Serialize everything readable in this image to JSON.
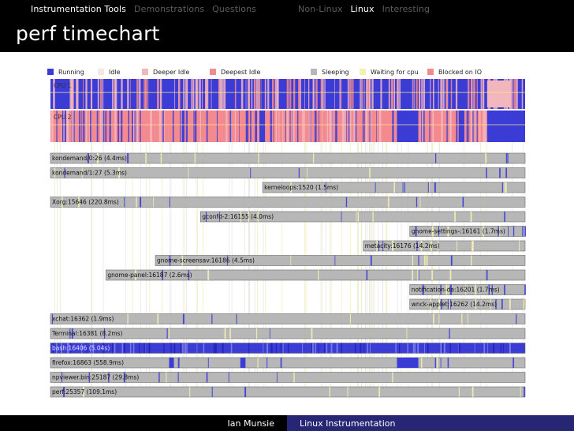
{
  "nav": {
    "left": [
      {
        "label": "Instrumentation Tools",
        "active": true
      },
      {
        "label": "Demonstrations",
        "active": false
      },
      {
        "label": "Questions",
        "active": false
      }
    ],
    "right": [
      {
        "label": "Non-Linux",
        "active": false
      },
      {
        "label": "Linux",
        "active": true
      },
      {
        "label": "Interesting",
        "active": false
      }
    ]
  },
  "slide": {
    "title": "perf timechart"
  },
  "footer": {
    "author": "Ian Munsie",
    "talk": "Linux Instrumentation"
  },
  "colors": {
    "running": "#3b3bd6",
    "idle": "#f6e6e6",
    "deeper_idle": "#f4b6bd",
    "deepest_idle": "#f28a8f",
    "sleeping": "#b7b7b7",
    "waiting_for_cpu": "#f3f0b0",
    "blocked_on_io": "#f28a8f"
  },
  "legend": [
    {
      "label": "Running",
      "color_key": "running"
    },
    {
      "label": "Idle",
      "color_key": "idle"
    },
    {
      "label": "Deeper Idle",
      "color_key": "deeper_idle"
    },
    {
      "label": "Deepest Idle",
      "color_key": "deepest_idle"
    },
    {
      "label": "Sleeping",
      "color_key": "sleeping"
    },
    {
      "label": "Waiting for cpu",
      "color_key": "waiting_for_cpu"
    },
    {
      "label": "Blocked on IO",
      "color_key": "blocked_on_io"
    }
  ],
  "cpus": [
    {
      "label": "CPU 1",
      "dominant": "running"
    },
    {
      "label": "CPU 2",
      "dominant": "deepest_idle"
    }
  ],
  "processes": [
    {
      "label": "kondemand/0:26 (4.4ms)",
      "start": 0.0,
      "end": 1.0,
      "type": "sleeping"
    },
    {
      "label": "kondemand/1:27 (5.3ms)",
      "start": 0.0,
      "end": 1.0,
      "type": "sleeping"
    },
    {
      "label": "kerneloops:1520 (1.5ms)",
      "start": 0.447,
      "end": 1.0,
      "type": "sleeping"
    },
    {
      "label": "Xorg:15646 (220.8ms)",
      "start": 0.0,
      "end": 1.0,
      "type": "sleeping"
    },
    {
      "label": "gconfd-2:16155 (4.0ms)",
      "start": 0.316,
      "end": 1.0,
      "type": "sleeping"
    },
    {
      "label": "gnome-settings-:16161 (1.7ms)",
      "start": 0.757,
      "end": 1.0,
      "type": "sleeping"
    },
    {
      "label": "metacity:16176 (14.2ms)",
      "start": 0.659,
      "end": 1.0,
      "type": "sleeping"
    },
    {
      "label": "gnome-screensav:16186 (4.5ms)",
      "start": 0.221,
      "end": 1.0,
      "type": "sleeping"
    },
    {
      "label": "gnome-panel:16187 (2.6ms)",
      "start": 0.117,
      "end": 1.0,
      "type": "sleeping"
    },
    {
      "label": "notification-da:16201 (1.7ms)",
      "start": 0.757,
      "end": 1.0,
      "type": "sleeping"
    },
    {
      "label": "wnck-applet:16262 (14.2ms)",
      "start": 0.757,
      "end": 1.0,
      "type": "sleeping"
    },
    {
      "label": "xchat:16362 (1.9ms)",
      "start": 0.0,
      "end": 1.0,
      "type": "sleeping"
    },
    {
      "label": "Terminal:16381 (8.2ms)",
      "start": 0.0,
      "end": 1.0,
      "type": "sleeping"
    },
    {
      "label": "bash:16406 (5.04s)",
      "start": 0.0,
      "end": 1.0,
      "type": "running"
    },
    {
      "label": "firefox:16863 (558.9ms)",
      "start": 0.0,
      "end": 1.0,
      "type": "sleeping"
    },
    {
      "label": "npviewer.bin:25187 (29.8ms)",
      "start": 0.0,
      "end": 1.0,
      "type": "sleeping"
    },
    {
      "label": "perf:25357 (109.1ms)",
      "start": 0.0,
      "end": 1.0,
      "type": "sleeping"
    }
  ]
}
